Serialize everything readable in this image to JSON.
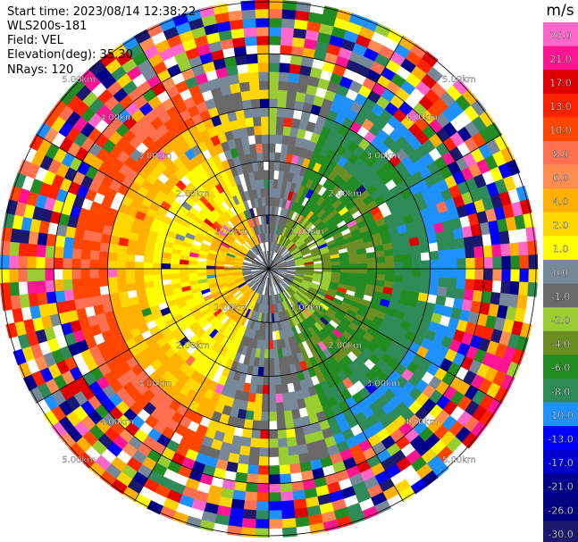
{
  "info": {
    "start_time": "Start time: 2023/08/14 12:38:22",
    "instrument": "WLS200s-181",
    "field": "Field: VEL",
    "elevation": "Elevation(deg): 35.30",
    "nrays": "NRays: 120"
  },
  "colorbar": {
    "unit": "m/s",
    "ticks": [
      "26.0",
      "21.0",
      "17.0",
      "13.0",
      "10.0",
      "8.0",
      "6.0",
      "4.0",
      "2.0",
      "1.0",
      "0.0",
      "-1.0",
      "-2.0",
      "-4.0",
      "-6.0",
      "-8.0",
      "-10.0",
      "-13.0",
      "-17.0",
      "-21.0",
      "-26.0",
      "-30.0"
    ],
    "colors": [
      "#ff66cc",
      "#ff1493",
      "#e00000",
      "#ff2200",
      "#ff4500",
      "#ff7050",
      "#ff8c50",
      "#ffb000",
      "#ffd700",
      "#ffff00",
      "#778899",
      "#696969",
      "#9acd32",
      "#6b8e23",
      "#228b22",
      "#2e8b57",
      "#1e90ff",
      "#0000ff",
      "#0000cd",
      "#00008b",
      "#000080",
      "#191970"
    ]
  },
  "range_rings": {
    "labels": [
      "1.00km",
      "2.00km",
      "3.00km",
      "4.00km",
      "5.00km"
    ]
  },
  "chart_data": {
    "type": "heatmap",
    "projection": "ppi",
    "field": "VEL",
    "nrays": 120,
    "range_max_km": 5.0,
    "ring_spacing_km": 1.0,
    "spoke_step_deg": 30,
    "value_range": [
      -30.0,
      26.0
    ],
    "pattern": {
      "near_range_km": 3.0,
      "west_sector": "positive velocities (yellow, 1 to 2 m/s), orange beyond 2.5 km",
      "east_sector": "negative velocities (green, -2 to -6 m/s), blue beyond 2.5 km",
      "north_south_sector": "near-zero velocities (grey)",
      "far_range": "noisy mixed colors beyond 3.5 km"
    }
  }
}
